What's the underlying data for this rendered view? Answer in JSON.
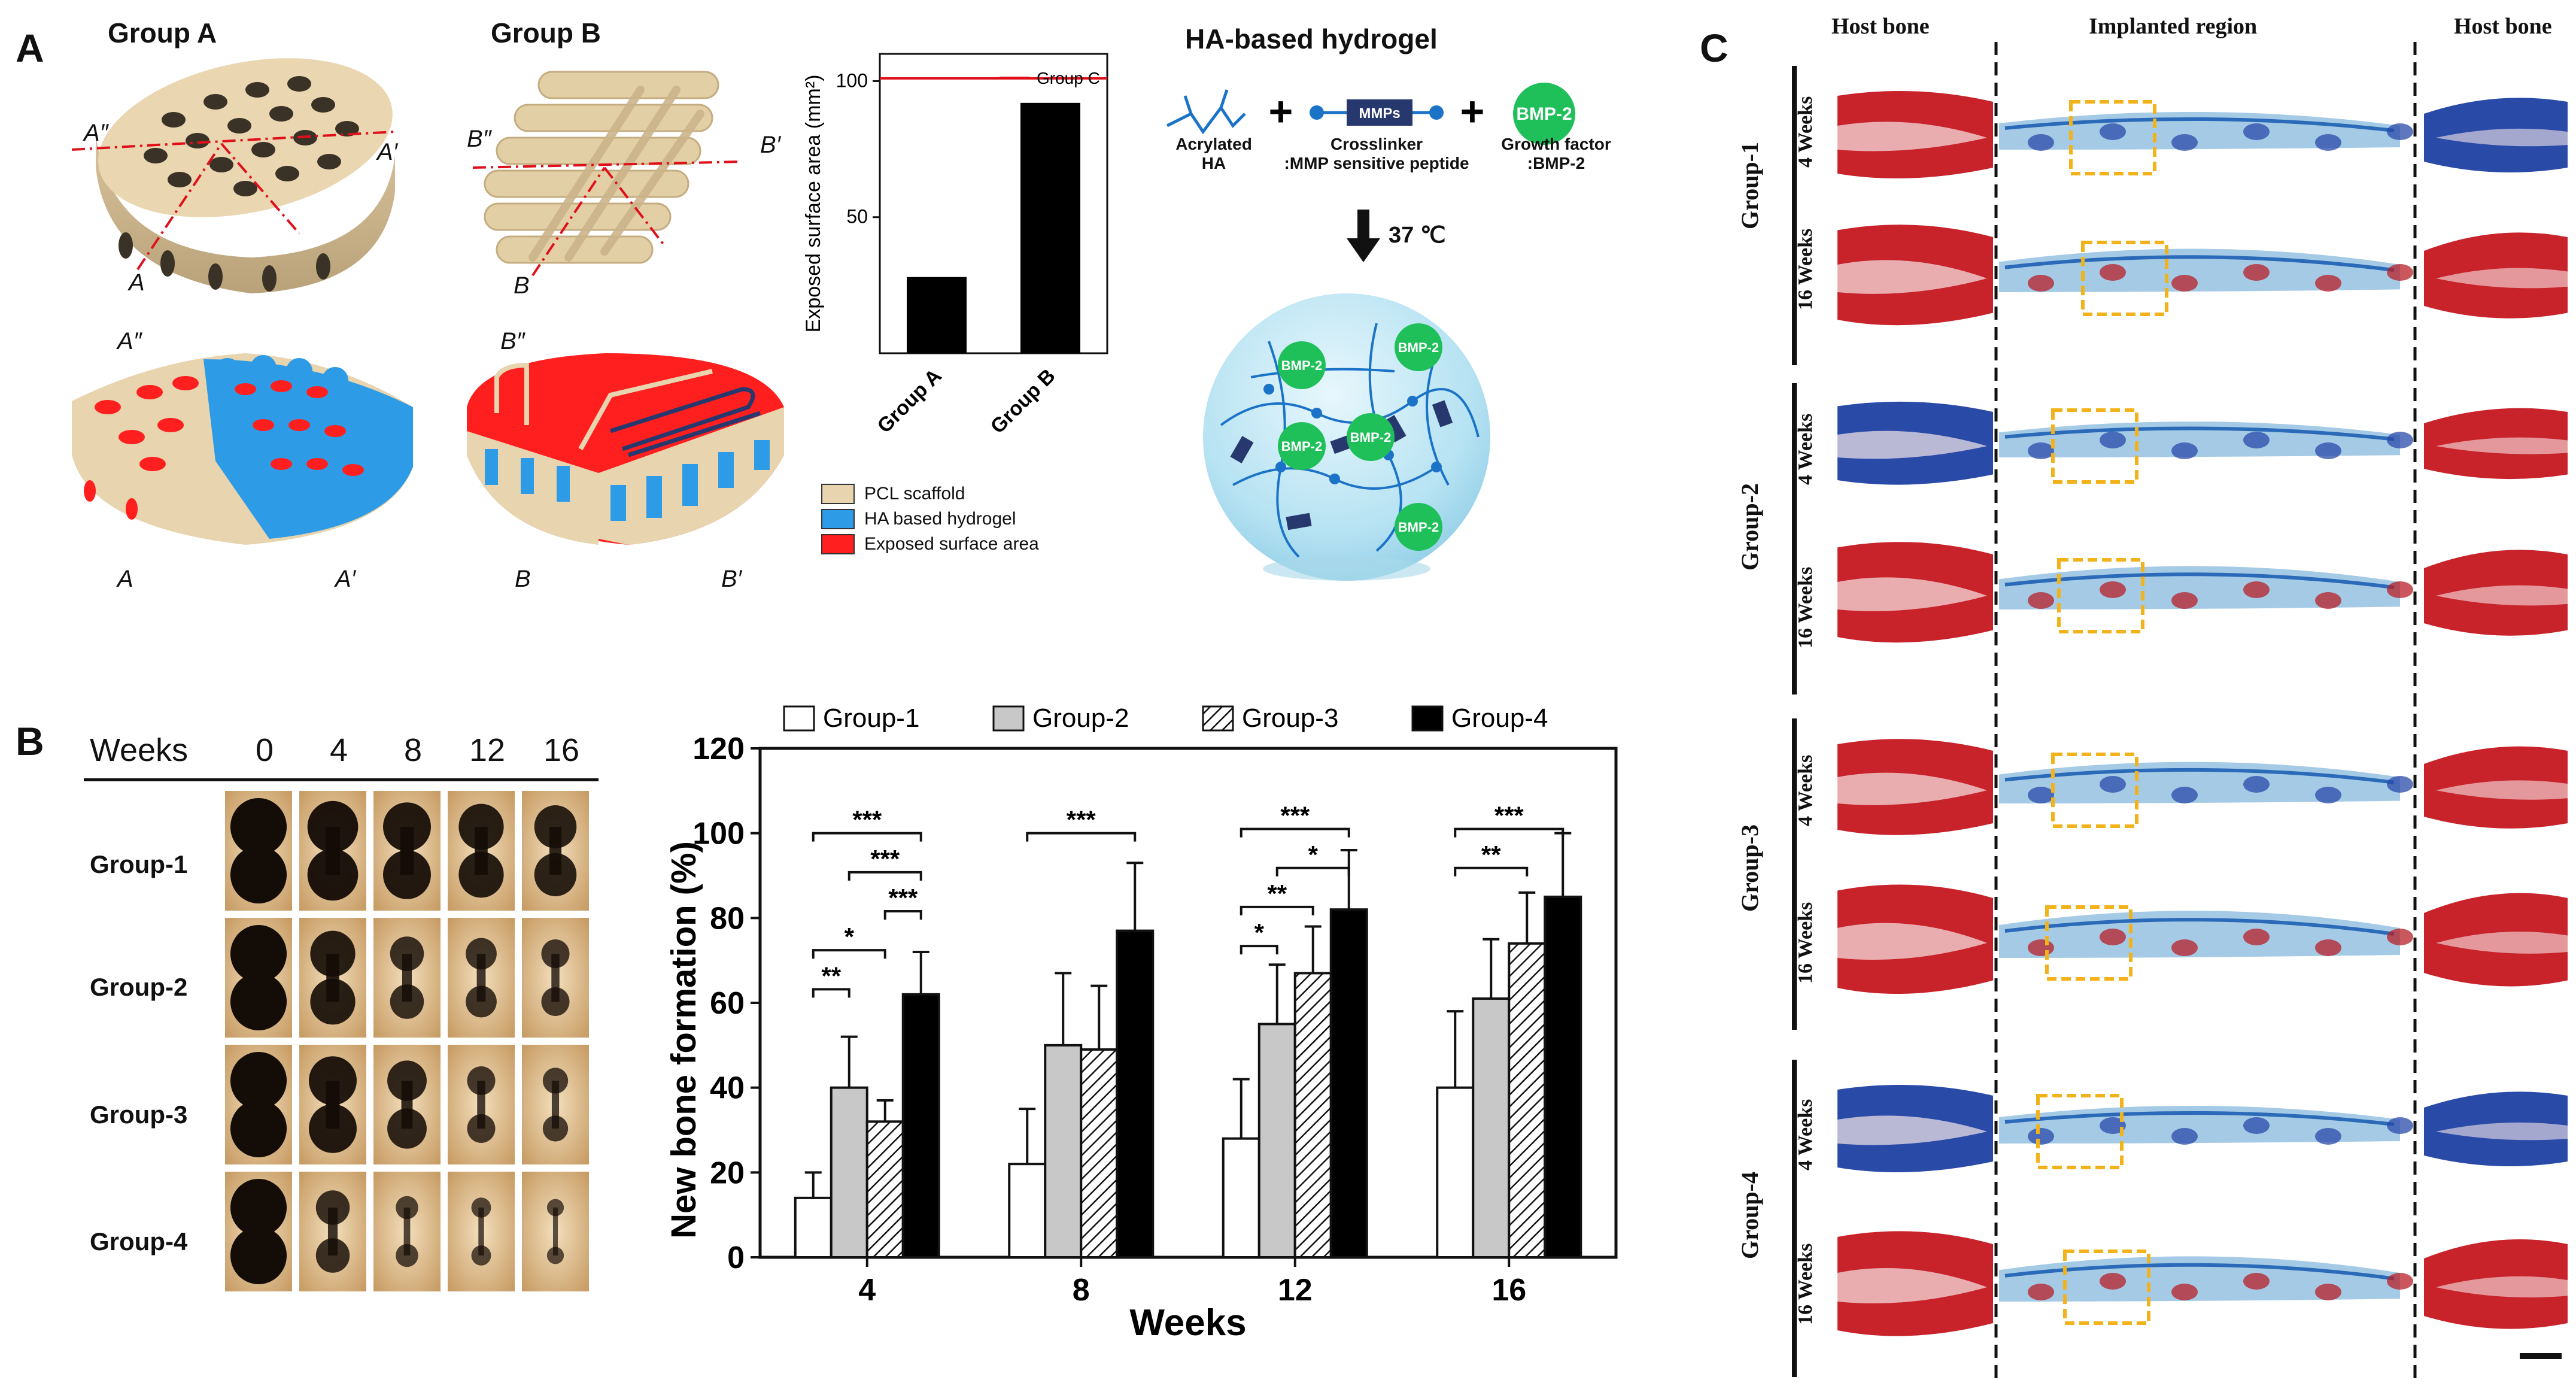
{
  "panel_a": {
    "letter": "A",
    "group_a": {
      "title": "Group A",
      "lbl_a2": "A″",
      "lbl_a1": "A′",
      "lbl_a": "A"
    },
    "group_b": {
      "title": "Group B",
      "lbl_b2": "B″",
      "lbl_b1": "B′",
      "lbl_b": "B"
    },
    "legend": [
      {
        "label": "PCL scaffold",
        "color": "#e8d4ae"
      },
      {
        "label": "HA based hydrogel",
        "color": "#2e9be6"
      },
      {
        "label": "Exposed surface area",
        "color": "#ff1f1f"
      }
    ],
    "hydrogel": {
      "title": "HA-based hydrogel",
      "acrylated": "Acrylated",
      "ha": "HA",
      "crosslinker": "Crosslinker",
      "crosslinker_sub": ":MMP sensitive peptide",
      "mmps": "MMPs",
      "growth_factor": "Growth factor",
      "growth_factor_sub": ":BMP-2",
      "bmp2": "BMP-2",
      "temp": "37 ℃",
      "plus": "+"
    }
  },
  "panel_b": {
    "letter": "B",
    "weeks_label": "Weeks",
    "week_headers": [
      "0",
      "4",
      "8",
      "12",
      "16"
    ],
    "row_labels": [
      "Group-1",
      "Group-2",
      "Group-3",
      "Group-4"
    ]
  },
  "panel_c": {
    "letter": "C",
    "header_left": "Host bone",
    "header_mid": "Implanted region",
    "header_right": "Host bone",
    "groups": [
      {
        "name": "Group-1",
        "rows": [
          "4 Weeks",
          "16 Weeks"
        ]
      },
      {
        "name": "Group-2",
        "rows": [
          "4 Weeks",
          "16 Weeks"
        ]
      },
      {
        "name": "Group-3",
        "rows": [
          "4 Weeks",
          "16 Weeks"
        ]
      },
      {
        "name": "Group-4",
        "rows": [
          "4 Weeks",
          "16 Weeks"
        ]
      }
    ]
  },
  "chart_data": [
    {
      "type": "bar",
      "ylabel": "Exposed surface area (mm²)",
      "categories": [
        "Group A",
        "Group B"
      ],
      "values": [
        28,
        92
      ],
      "ylim": [
        0,
        110
      ],
      "yticks": [
        "50",
        "100"
      ],
      "reference_line": {
        "name": "Group C",
        "value": 101,
        "color": "#e0101a"
      },
      "legend": "top-right"
    },
    {
      "type": "bar",
      "xlabel": "Weeks",
      "ylabel": "New bone formation (%)",
      "categories": [
        "4",
        "8",
        "12",
        "16"
      ],
      "ylim": [
        0,
        120
      ],
      "yticks": [
        "0",
        "20",
        "40",
        "60",
        "80",
        "100",
        "120"
      ],
      "series": [
        {
          "name": "Group-1",
          "values": [
            14,
            22,
            28,
            40
          ],
          "errors": [
            6,
            13,
            14,
            18
          ],
          "fill": "#ffffff",
          "pattern": "none"
        },
        {
          "name": "Group-2",
          "values": [
            40,
            50,
            55,
            61
          ],
          "errors": [
            12,
            17,
            14,
            14
          ],
          "fill": "#c8c8c8",
          "pattern": "none"
        },
        {
          "name": "Group-3",
          "values": [
            32,
            49,
            67,
            74
          ],
          "errors": [
            5,
            15,
            11,
            12
          ],
          "fill": "#ffffff",
          "pattern": "hatch"
        },
        {
          "name": "Group-4",
          "values": [
            62,
            77,
            82,
            85
          ],
          "errors": [
            10,
            16,
            14,
            15
          ],
          "fill": "#000000",
          "pattern": "none"
        }
      ],
      "significance": [
        {
          "category": "4",
          "from": 0,
          "to": 3,
          "level": 1,
          "stars": "***"
        },
        {
          "category": "4",
          "from": 1,
          "to": 3,
          "level": 2,
          "stars": "***"
        },
        {
          "category": "4",
          "from": 2,
          "to": 3,
          "level": 3,
          "stars": "***"
        },
        {
          "category": "4",
          "from": 0,
          "to": 2,
          "level": 4,
          "stars": "*"
        },
        {
          "category": "4",
          "from": 0,
          "to": 1,
          "level": 5,
          "stars": "**"
        },
        {
          "category": "8",
          "from": 0,
          "to": 3,
          "level": 1,
          "stars": "***"
        },
        {
          "category": "12",
          "from": 0,
          "to": 3,
          "level": 1,
          "stars": "***"
        },
        {
          "category": "12",
          "from": 1,
          "to": 3,
          "level": 2,
          "stars": "*"
        },
        {
          "category": "12",
          "from": 0,
          "to": 2,
          "level": 3,
          "stars": "**"
        },
        {
          "category": "12",
          "from": 0,
          "to": 1,
          "level": 4,
          "stars": "*"
        },
        {
          "category": "16",
          "from": 0,
          "to": 3,
          "level": 1,
          "stars": "***"
        },
        {
          "category": "16",
          "from": 0,
          "to": 2,
          "level": 2,
          "stars": "**"
        }
      ],
      "legend": "top"
    }
  ]
}
